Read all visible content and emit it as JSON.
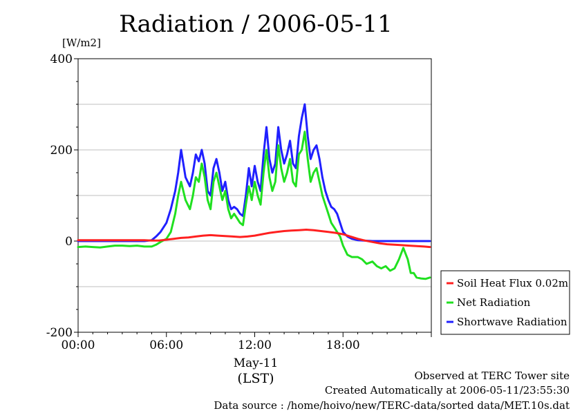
{
  "chart_data": {
    "type": "line",
    "title": "Radiation / 2006-05-11",
    "ylabel": "[W/m2]",
    "ylim": [
      -200,
      400
    ],
    "yticks": [
      -200,
      0,
      200,
      400
    ],
    "xlim": [
      0,
      24
    ],
    "xticks": [
      "00:00",
      "06:00",
      "12:00",
      "18:00"
    ],
    "xlabel_date": "May-11",
    "xlabel_unit": "(LST)",
    "grid": true,
    "legend_position": "right",
    "series": [
      {
        "name": "Soil Heat Flux 0.02m",
        "color": "#ff2020",
        "x": [
          0,
          4.5,
          5.0,
          5.5,
          6.0,
          6.5,
          7.0,
          7.5,
          8.0,
          8.5,
          9.0,
          9.5,
          10.0,
          10.5,
          11.0,
          11.5,
          12.0,
          12.5,
          13.0,
          13.5,
          14.0,
          14.5,
          15.0,
          15.5,
          16.0,
          16.5,
          17.0,
          17.5,
          18.0,
          18.5,
          19.0,
          19.5,
          20.0,
          20.5,
          21.0,
          21.5,
          22.0,
          22.5,
          23.0,
          23.5,
          23.9
        ],
        "y": [
          2,
          2,
          1,
          1,
          3,
          5,
          7,
          8,
          10,
          12,
          13,
          12,
          11,
          10,
          9,
          10,
          12,
          15,
          18,
          20,
          22,
          23,
          24,
          25,
          24,
          22,
          20,
          18,
          15,
          10,
          5,
          1,
          -2,
          -5,
          -7,
          -8,
          -9,
          -10,
          -11,
          -12,
          -13
        ]
      },
      {
        "name": "Net Radiation",
        "color": "#20e020",
        "x": [
          0,
          0.5,
          1,
          1.5,
          2,
          2.5,
          3,
          3.5,
          4,
          4.5,
          5,
          5.3,
          5.6,
          6.0,
          6.3,
          6.6,
          6.8,
          7.0,
          7.3,
          7.6,
          7.8,
          8.0,
          8.2,
          8.4,
          8.6,
          8.8,
          9.0,
          9.2,
          9.4,
          9.6,
          9.8,
          10.0,
          10.2,
          10.4,
          10.6,
          10.8,
          11.0,
          11.2,
          11.4,
          11.6,
          11.8,
          12.0,
          12.2,
          12.4,
          12.6,
          12.8,
          13.0,
          13.2,
          13.4,
          13.6,
          13.8,
          14.0,
          14.2,
          14.4,
          14.6,
          14.8,
          15.0,
          15.2,
          15.4,
          15.6,
          15.8,
          16.0,
          16.2,
          16.4,
          16.6,
          16.8,
          17.0,
          17.2,
          17.4,
          17.6,
          17.8,
          18.0,
          18.3,
          18.6,
          19.0,
          19.3,
          19.6,
          20.0,
          20.3,
          20.6,
          20.9,
          21.2,
          21.5,
          21.8,
          22.1,
          22.4,
          22.6,
          22.8,
          23.0,
          23.3,
          23.6,
          23.9
        ],
        "y": [
          -13,
          -12,
          -13,
          -14,
          -12,
          -10,
          -10,
          -11,
          -10,
          -12,
          -12,
          -8,
          -2,
          5,
          20,
          60,
          100,
          130,
          90,
          70,
          100,
          140,
          130,
          170,
          140,
          90,
          70,
          130,
          150,
          120,
          90,
          110,
          70,
          50,
          60,
          50,
          40,
          35,
          80,
          120,
          90,
          130,
          100,
          80,
          150,
          200,
          140,
          110,
          130,
          210,
          160,
          130,
          150,
          180,
          130,
          120,
          190,
          200,
          240,
          180,
          130,
          150,
          160,
          130,
          100,
          80,
          60,
          40,
          30,
          20,
          10,
          -10,
          -30,
          -35,
          -35,
          -40,
          -50,
          -45,
          -55,
          -60,
          -55,
          -65,
          -60,
          -40,
          -15,
          -40,
          -70,
          -70,
          -80,
          -82,
          -83,
          -80
        ]
      },
      {
        "name": "Shortwave Radiation",
        "color": "#2020ff",
        "x": [
          0,
          1,
          2,
          3,
          4,
          4.5,
          5,
          5.3,
          5.6,
          6.0,
          6.3,
          6.6,
          6.8,
          7.0,
          7.3,
          7.6,
          7.8,
          8.0,
          8.2,
          8.4,
          8.6,
          8.8,
          9.0,
          9.2,
          9.4,
          9.6,
          9.8,
          10.0,
          10.2,
          10.4,
          10.6,
          10.8,
          11.0,
          11.2,
          11.4,
          11.6,
          11.8,
          12.0,
          12.2,
          12.4,
          12.6,
          12.8,
          13.0,
          13.2,
          13.4,
          13.6,
          13.8,
          14.0,
          14.2,
          14.4,
          14.6,
          14.8,
          15.0,
          15.2,
          15.4,
          15.6,
          15.8,
          16.0,
          16.2,
          16.4,
          16.6,
          16.8,
          17.0,
          17.2,
          17.4,
          17.6,
          17.8,
          18.0,
          18.3,
          18.6,
          19.0,
          20.0,
          21.0,
          22.0,
          23.0,
          23.9
        ],
        "y": [
          0,
          0,
          0,
          0,
          0,
          0,
          2,
          10,
          20,
          40,
          70,
          110,
          150,
          200,
          140,
          120,
          150,
          190,
          175,
          200,
          170,
          110,
          100,
          160,
          180,
          150,
          110,
          130,
          90,
          70,
          75,
          70,
          60,
          55,
          100,
          160,
          120,
          165,
          130,
          110,
          190,
          250,
          180,
          150,
          170,
          250,
          200,
          170,
          190,
          220,
          170,
          160,
          230,
          270,
          300,
          230,
          180,
          200,
          210,
          180,
          140,
          110,
          90,
          75,
          70,
          60,
          40,
          20,
          10,
          5,
          2,
          0,
          0,
          0,
          0,
          0
        ]
      }
    ],
    "notes": [
      "Observed at TERC Tower site",
      "Created Automatically at 2006-05-11/23:55:30",
      "Data source : /home/hoivo/new/TERC-data/sorted  data/MET.10s.dat"
    ]
  }
}
